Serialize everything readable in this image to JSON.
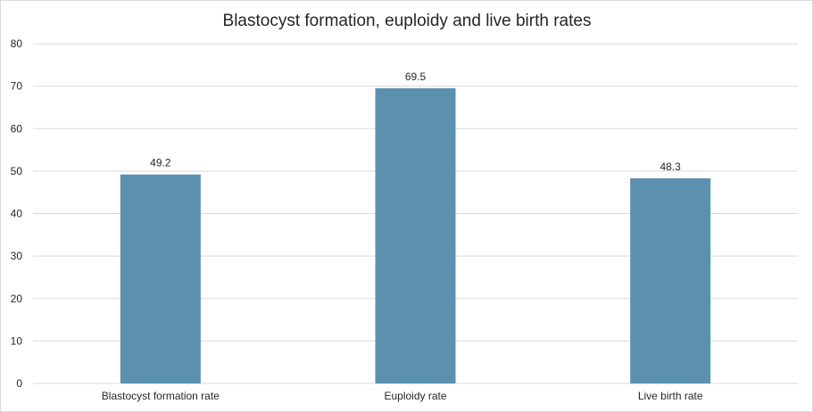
{
  "chart_data": {
    "type": "bar",
    "title": "Blastocyst formation, euploidy and live birth rates",
    "xlabel": "",
    "ylabel": "",
    "categories": [
      "Blastocyst formation rate",
      "Euploidy rate",
      "Live birth rate"
    ],
    "values": [
      49.2,
      69.5,
      48.3
    ],
    "value_labels": [
      "49.2",
      "69.5",
      "48.3"
    ],
    "ylim": [
      0,
      80
    ],
    "yticks": [
      0,
      10,
      20,
      30,
      40,
      50,
      60,
      70,
      80
    ],
    "grid": true,
    "legend": "none",
    "bar_color": "#5b90ae",
    "grid_color": "#d9d9d9"
  }
}
